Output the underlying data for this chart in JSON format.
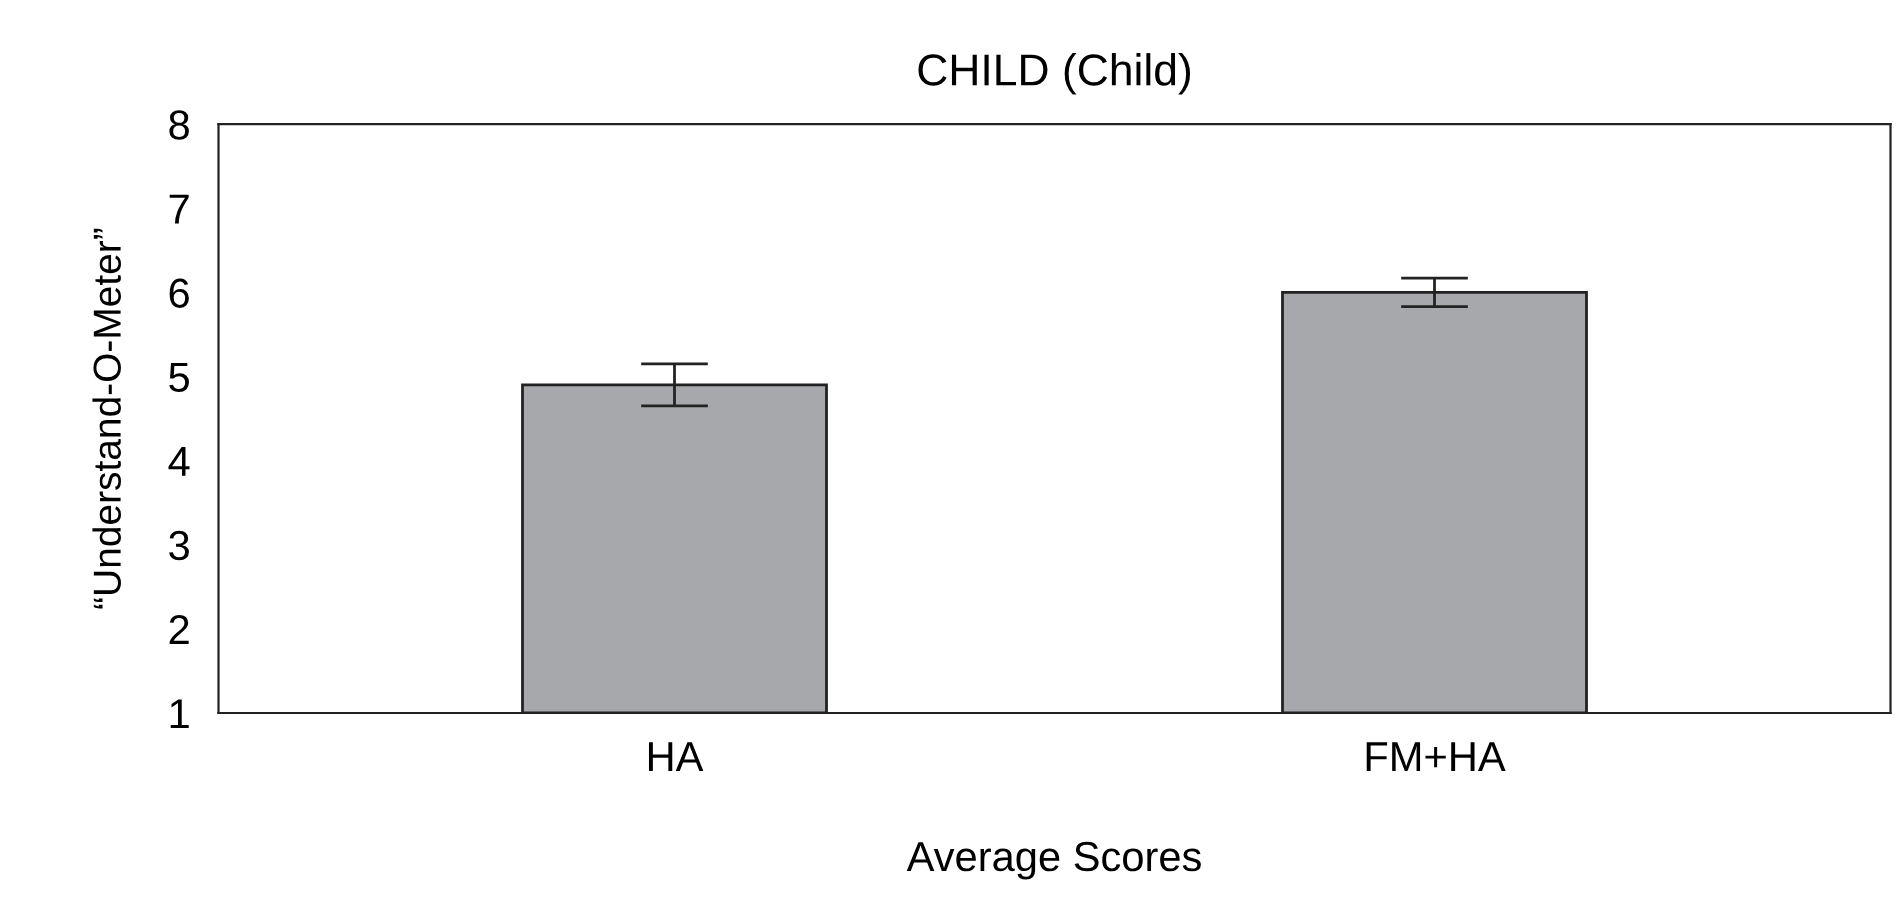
{
  "chart_data": {
    "type": "bar",
    "title": "CHILD (Child)",
    "xlabel": "Average Scores",
    "ylabel": "“Understand-O-Meter”",
    "categories": [
      "HA",
      "FM+HA"
    ],
    "series": [
      {
        "color": "#a7a8ab",
        "values": [
          4.9,
          6.0
        ],
        "errors": [
          0.25,
          0.17
        ]
      }
    ],
    "ylim": [
      1,
      8
    ],
    "yticks": [
      1,
      2,
      3,
      4,
      5,
      6,
      7,
      8
    ],
    "grid": false
  }
}
